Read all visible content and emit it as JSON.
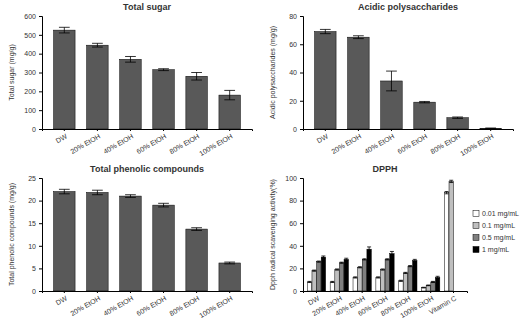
{
  "chart_data": [
    {
      "type": "bar",
      "title": "Total sugar",
      "y_label": "Total sugar (mg/g)",
      "categories": [
        "DW",
        "20% EtOH",
        "40% EtOH",
        "60% EtOH",
        "80% EtOH",
        "100% EtOH"
      ],
      "values": [
        525,
        445,
        370,
        315,
        280,
        180
      ],
      "errors": [
        15,
        10,
        15,
        5,
        20,
        25
      ],
      "color": "#595959",
      "ylim": [
        0,
        600
      ],
      "yticks": [
        0,
        100,
        200,
        300,
        400,
        500,
        600
      ]
    },
    {
      "type": "bar",
      "title": "Acidic polysaccharides",
      "y_label": "Acidic polysaccharides (mg/g)",
      "categories": [
        "DW",
        "20% EtOH",
        "40% EtOH",
        "60% EtOH",
        "80% EtOH",
        "100% EtOH"
      ],
      "values": [
        69,
        65,
        34,
        19,
        8,
        0.5
      ],
      "errors": [
        1.5,
        1,
        7,
        0.5,
        0.5,
        0.2
      ],
      "color": "#595959",
      "ylim": [
        0,
        80
      ],
      "yticks": [
        0,
        20,
        40,
        60,
        80
      ]
    },
    {
      "type": "bar",
      "title": "Total phenolic compounds",
      "y_label": "Total phenolic compounds (mg/g)",
      "categories": [
        "DW",
        "20% EtOH",
        "40% EtOH",
        "60% EtOH",
        "80% EtOH",
        "100% EtOH"
      ],
      "values": [
        22,
        21.8,
        21,
        19,
        13.7,
        6.2
      ],
      "errors": [
        0.5,
        0.5,
        0.3,
        0.4,
        0.3,
        0.2
      ],
      "color": "#595959",
      "ylim": [
        0,
        25
      ],
      "yticks": [
        0,
        5,
        10,
        15,
        20,
        25
      ]
    },
    {
      "type": "bar",
      "title": "DPPH",
      "y_label": "Dpph radical scavenging activity(%)",
      "categories": [
        "DW",
        "20% EtOH",
        "40% EtOH",
        "60% EtOH",
        "80% EtOH",
        "100% EtOH",
        "Vitamin C"
      ],
      "series": [
        {
          "name": "0.01 mg/mL",
          "color": "#ffffff",
          "values": [
            8,
            8,
            12,
            12,
            9,
            3,
            87
          ],
          "errors": [
            0.5,
            0.5,
            0.5,
            0.5,
            0.5,
            0.3,
            1
          ]
        },
        {
          "name": "0.1 mg/mL",
          "color": "#bfbfbf",
          "values": [
            18,
            19,
            21,
            19,
            16,
            5,
            97
          ],
          "errors": [
            0.5,
            0.5,
            0.5,
            0.5,
            0.5,
            0.3,
            1
          ]
        },
        {
          "name": "0.5 mg/mL",
          "color": "#7f7f7f",
          "values": [
            26,
            25,
            28,
            28,
            22,
            8,
            null
          ],
          "errors": [
            0.5,
            0.5,
            0.5,
            0.5,
            0.5,
            0.5,
            null
          ]
        },
        {
          "name": "1 mg/mL",
          "color": "#000000",
          "values": [
            30,
            28,
            37,
            33,
            27,
            12,
            null
          ],
          "errors": [
            1,
            1,
            2,
            2,
            1,
            1,
            null
          ]
        }
      ],
      "legend": "right",
      "ylim": [
        0,
        100
      ],
      "yticks": [
        0,
        20,
        40,
        60,
        80,
        100
      ]
    }
  ]
}
